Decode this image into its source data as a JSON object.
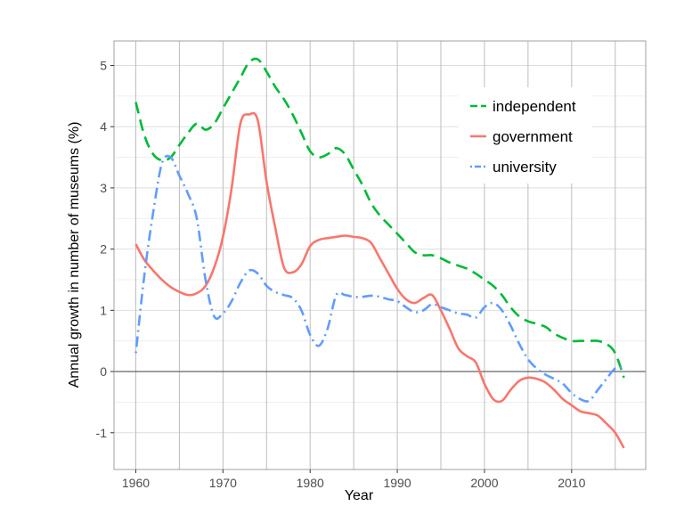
{
  "chart_data": {
    "type": "line",
    "title": "",
    "xlabel": "Year",
    "ylabel": "Annual growth in number of museums (%)",
    "xlim": [
      1957.5,
      2018.5
    ],
    "ylim": [
      -1.6,
      5.4
    ],
    "x_ticks": [
      1960,
      1970,
      1980,
      1990,
      2000,
      2010
    ],
    "x_tick_labels": [
      "1960",
      "1970",
      "1980",
      "1990",
      "2000",
      "2010"
    ],
    "y_ticks": [
      -1,
      0,
      1,
      2,
      3,
      4,
      5
    ],
    "y_tick_labels": [
      "-1",
      "0",
      "1",
      "2",
      "3",
      "4",
      "5"
    ],
    "grid": true,
    "zero_line": true,
    "legend_position": "top-right",
    "series": [
      {
        "name": "independent",
        "color": "#00ba38",
        "dash": "dashed",
        "x": [
          1960,
          1961,
          1962,
          1963,
          1964,
          1965,
          1966,
          1967,
          1968,
          1969,
          1970,
          1971,
          1972,
          1973,
          1974,
          1975,
          1976,
          1977,
          1978,
          1979,
          1980,
          1981,
          1982,
          1983,
          1984,
          1985,
          1986,
          1987,
          1988,
          1989,
          1990,
          1991,
          1992,
          1993,
          1994,
          1995,
          1996,
          1997,
          1998,
          1999,
          2000,
          2001,
          2002,
          2003,
          2004,
          2005,
          2006,
          2007,
          2008,
          2009,
          2010,
          2011,
          2012,
          2013,
          2014,
          2015,
          2016
        ],
        "y": [
          4.4,
          3.85,
          3.55,
          3.45,
          3.5,
          3.7,
          3.9,
          4.05,
          3.95,
          4.05,
          4.3,
          4.55,
          4.8,
          5.05,
          5.1,
          4.9,
          4.65,
          4.45,
          4.2,
          3.9,
          3.6,
          3.5,
          3.55,
          3.65,
          3.55,
          3.3,
          3.05,
          2.75,
          2.55,
          2.4,
          2.25,
          2.1,
          1.95,
          1.9,
          1.9,
          1.85,
          1.78,
          1.73,
          1.68,
          1.6,
          1.5,
          1.4,
          1.25,
          1.05,
          0.9,
          0.82,
          0.78,
          0.73,
          0.62,
          0.55,
          0.5,
          0.5,
          0.5,
          0.5,
          0.45,
          0.3,
          -0.1
        ]
      },
      {
        "name": "government",
        "color": "#f8766d",
        "dash": "solid",
        "x": [
          1960,
          1961,
          1962,
          1963,
          1964,
          1965,
          1966,
          1967,
          1968,
          1969,
          1970,
          1971,
          1972,
          1973,
          1974,
          1975,
          1976,
          1977,
          1978,
          1979,
          1980,
          1981,
          1982,
          1983,
          1984,
          1985,
          1986,
          1987,
          1988,
          1989,
          1990,
          1991,
          1992,
          1993,
          1994,
          1995,
          1996,
          1997,
          1998,
          1999,
          2000,
          2001,
          2002,
          2003,
          2004,
          2005,
          2006,
          2007,
          2008,
          2009,
          2010,
          2011,
          2012,
          2013,
          2014,
          2015,
          2016
        ],
        "y": [
          2.08,
          1.82,
          1.65,
          1.5,
          1.38,
          1.3,
          1.25,
          1.28,
          1.4,
          1.7,
          2.2,
          3.0,
          4.05,
          4.2,
          4.1,
          3.1,
          2.35,
          1.7,
          1.62,
          1.75,
          2.05,
          2.15,
          2.18,
          2.2,
          2.22,
          2.2,
          2.18,
          2.1,
          1.85,
          1.6,
          1.35,
          1.18,
          1.12,
          1.2,
          1.25,
          1.0,
          0.7,
          0.38,
          0.25,
          0.15,
          -0.2,
          -0.45,
          -0.48,
          -0.3,
          -0.15,
          -0.1,
          -0.12,
          -0.18,
          -0.3,
          -0.45,
          -0.55,
          -0.65,
          -0.68,
          -0.72,
          -0.85,
          -1.0,
          -1.25
        ]
      },
      {
        "name": "university",
        "color": "#619cff",
        "dash": "dot-dash",
        "x": [
          1960,
          1961,
          1962,
          1963,
          1964,
          1965,
          1966,
          1967,
          1968,
          1969,
          1970,
          1971,
          1972,
          1973,
          1974,
          1975,
          1976,
          1977,
          1978,
          1979,
          1980,
          1981,
          1982,
          1983,
          1984,
          1985,
          1986,
          1987,
          1988,
          1989,
          1990,
          1991,
          1992,
          1993,
          1994,
          1995,
          1996,
          1997,
          1998,
          1999,
          2000,
          2001,
          2002,
          2003,
          2004,
          2005,
          2006,
          2007,
          2008,
          2009,
          2010,
          2011,
          2012,
          2013,
          2014,
          2015,
          2016
        ],
        "y": [
          0.3,
          1.6,
          2.6,
          3.4,
          3.5,
          3.2,
          2.9,
          2.5,
          1.5,
          0.9,
          0.95,
          1.15,
          1.45,
          1.65,
          1.6,
          1.4,
          1.3,
          1.25,
          1.2,
          1.0,
          0.6,
          0.42,
          0.7,
          1.25,
          1.25,
          1.22,
          1.22,
          1.24,
          1.22,
          1.18,
          1.15,
          1.05,
          0.97,
          1.0,
          1.1,
          1.05,
          1.0,
          0.95,
          0.93,
          0.88,
          1.05,
          1.12,
          1.0,
          0.75,
          0.45,
          0.2,
          0.05,
          -0.05,
          -0.12,
          -0.2,
          -0.35,
          -0.45,
          -0.48,
          -0.3,
          -0.12,
          0.05,
          0.06
        ]
      }
    ]
  }
}
